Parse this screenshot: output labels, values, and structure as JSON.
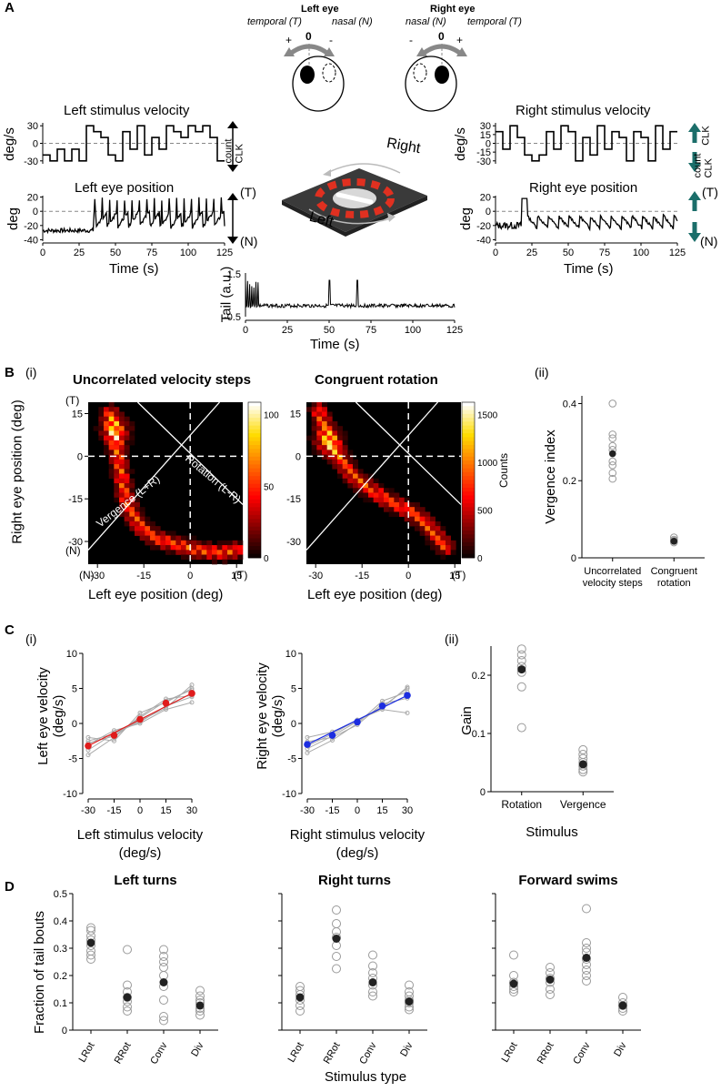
{
  "panels": {
    "A": "A",
    "B": "B",
    "C": "C",
    "D": "D",
    "i": "(i)",
    "ii": "(ii)"
  },
  "panelA": {
    "left_eye_title": "Left eye",
    "right_eye_title": "Right eye",
    "left_eye_temporal": "temporal (T)",
    "left_eye_nasal": "nasal (N)",
    "right_eye_nasal": "nasal (N)",
    "right_eye_temporal": "temporal (T)",
    "plus": "+",
    "minus": "-",
    "zero": "0",
    "left_stim_title": "Left stimulus velocity",
    "left_eye_title_trace": "Left eye position",
    "right_stim_title": "Right stimulus velocity",
    "right_eye_title_trace": "Right eye position",
    "ylabel_vel": "deg/s",
    "ylabel_pos": "deg",
    "xlabel_time": "Time (s)",
    "count_clk": [
      "count",
      "CLK"
    ],
    "clk_label": "CLK",
    "T": "(T)",
    "N": "(N)",
    "arena_right": "Right",
    "arena_left": "Left",
    "tail_ylabel": "Tail (a.u.)",
    "tail_yticks": [
      "1.5",
      "-0.5"
    ],
    "vel_yticks": [
      "30",
      "0",
      "-30"
    ],
    "pos_yticks": [
      "20",
      "0",
      "-20",
      "-40"
    ],
    "right_vel_yticks": [
      "30",
      "15",
      "0",
      "-15",
      "-30"
    ],
    "time_ticks": [
      "0",
      "25",
      "50",
      "75",
      "100",
      "125"
    ],
    "left_stim_steps": [
      -20,
      -30,
      -10,
      -30,
      -10,
      -30,
      30,
      20,
      10,
      -20,
      -30,
      20,
      -10,
      30,
      -20,
      10,
      -10,
      30,
      20,
      10,
      30,
      20,
      30,
      10,
      -30
    ],
    "right_stim_steps": [
      20,
      -10,
      30,
      10,
      -20,
      -30,
      -20,
      20,
      -10,
      30,
      20,
      -30,
      10,
      -20,
      30,
      -10,
      20,
      10,
      -30,
      20,
      10,
      -30,
      30,
      -10,
      20
    ],
    "colors": {
      "clk_arrow_left": "#000000",
      "clk_arrow_right": "#1b6e6a",
      "arena_stripe": "#e03020"
    }
  },
  "panelB": {
    "hist1_title": "Uncorrelated velocity steps",
    "hist2_title": "Congruent rotation",
    "ylabel": "Right eye position (deg)",
    "xlabel": "Left eye position (deg)",
    "yticks": [
      "15",
      "0",
      "-15",
      "-30"
    ],
    "xticks": [
      "-30",
      "-15",
      "0",
      "15"
    ],
    "T": "(T)",
    "N": "(N)",
    "vergence_label": "Vergence (L+R)",
    "rotation_label": "Rotation (L-R)",
    "cbar1_ticks": [
      "100",
      "50",
      "0"
    ],
    "cbar2_ticks": [
      "1500",
      "1000",
      "500",
      "0"
    ],
    "cbar2_label": "Counts",
    "ii_ylabel": "Vergence index",
    "ii_yticks": [
      "0.4",
      "0.2",
      "0"
    ],
    "ii_xcats": [
      [
        "Uncorrelated",
        "velocity steps"
      ],
      [
        "Congruent",
        "rotation"
      ]
    ]
  },
  "chart_data": [
    {
      "type": "heatmap",
      "title": "Uncorrelated velocity steps",
      "xlabel": "Left eye position (deg)",
      "ylabel": "Right eye position (deg)",
      "xlim": [
        -33,
        17
      ],
      "ylim": [
        -38,
        19
      ],
      "colorbar_max": 120,
      "ridge": [
        [
          -26,
          15
        ],
        [
          -25,
          10
        ],
        [
          -24,
          4
        ],
        [
          -23,
          -2
        ],
        [
          -22,
          -8
        ],
        [
          -21,
          -14
        ],
        [
          -19,
          -20
        ],
        [
          -16,
          -25
        ],
        [
          -11,
          -29
        ],
        [
          -5,
          -31
        ],
        [
          2,
          -33
        ],
        [
          10,
          -34
        ],
        [
          15,
          -33
        ]
      ],
      "peak": [
        -24,
        9
      ]
    },
    {
      "type": "heatmap",
      "title": "Congruent rotation",
      "xlabel": "Left eye position (deg)",
      "colorbar_label": "Counts",
      "colorbar_max": 1700,
      "ridge": [
        [
          -29,
          16
        ],
        [
          -27,
          10
        ],
        [
          -25,
          4
        ],
        [
          -22,
          -1
        ],
        [
          -18,
          -7
        ],
        [
          -12,
          -12
        ],
        [
          -6,
          -16
        ],
        [
          0,
          -19
        ],
        [
          5,
          -23
        ],
        [
          9,
          -28
        ],
        [
          12,
          -32
        ]
      ],
      "peak": [
        -26,
        5
      ]
    },
    {
      "type": "scatter",
      "ylabel": "Vergence index",
      "categories": [
        "Uncorrelated velocity steps",
        "Congruent rotation"
      ],
      "ylim": [
        0,
        0.42
      ],
      "points": [
        [
          0.4,
          0.32,
          0.31,
          0.29,
          0.28,
          0.25,
          0.24,
          0.22,
          0.205
        ],
        [
          0.053,
          0.047,
          0.044,
          0.04
        ]
      ],
      "means": [
        0.27,
        0.043
      ]
    },
    {
      "type": "line",
      "xlabel": "Left stimulus velocity (deg/s)",
      "ylabel": "Left eye velocity (deg/s)",
      "x": [
        -30,
        -15,
        0,
        15,
        30
      ],
      "xlim": [
        -30,
        30
      ],
      "ylim": [
        -10,
        10
      ],
      "mean": [
        -3.2,
        -1.7,
        0.6,
        2.9,
        4.3
      ],
      "individuals": [
        [
          -2.5,
          -1.5,
          0.4,
          2.2,
          5.5
        ],
        [
          -4.5,
          -2.0,
          1.0,
          3.5,
          4.0
        ],
        [
          -3.0,
          -1.0,
          0.0,
          2.0,
          3.0
        ],
        [
          -2.0,
          -2.5,
          1.5,
          3.0,
          5.0
        ],
        [
          -3.8,
          -1.4,
          0.2,
          2.5,
          3.8
        ],
        [
          -2.8,
          -1.8,
          0.8,
          3.2,
          4.8
        ]
      ],
      "color": "#e01c1c"
    },
    {
      "type": "line",
      "xlabel": "Right stimulus velocity (deg/s)",
      "ylabel": "Right eye velocity (deg/s)",
      "x": [
        -30,
        -15,
        0,
        15,
        30
      ],
      "xlim": [
        -30,
        30
      ],
      "ylim": [
        -10,
        10
      ],
      "mean": [
        -3.0,
        -1.7,
        0.2,
        2.5,
        4.0
      ],
      "individuals": [
        [
          -2.0,
          -1.2,
          0.4,
          2.2,
          5.2
        ],
        [
          -4.2,
          -2.4,
          0.0,
          3.2,
          4.5
        ],
        [
          -3.2,
          -1.5,
          0.5,
          2.0,
          1.5
        ],
        [
          -2.6,
          -2.0,
          -0.2,
          2.8,
          3.6
        ],
        [
          -3.6,
          -1.8,
          0.3,
          2.4,
          5.0
        ]
      ],
      "color": "#1c2de0"
    },
    {
      "type": "scatter",
      "ylabel": "Gain",
      "xlabel": "Stimulus",
      "categories": [
        "Rotation",
        "Vergence"
      ],
      "ylim": [
        0,
        0.25
      ],
      "points": [
        [
          0.245,
          0.235,
          0.225,
          0.215,
          0.205,
          0.18,
          0.11
        ],
        [
          0.072,
          0.064,
          0.057,
          0.05,
          0.044,
          0.038,
          0.034
        ]
      ],
      "means": [
        0.21,
        0.047
      ]
    },
    {
      "type": "scatter",
      "title": "Left turns",
      "ylabel": "Fraction of tail bouts",
      "categories": [
        "LRot",
        "RRot",
        "Conv",
        "Div"
      ],
      "ylim": [
        0,
        0.5
      ],
      "points": [
        [
          0.375,
          0.365,
          0.345,
          0.33,
          0.31,
          0.29,
          0.275,
          0.26
        ],
        [
          0.295,
          0.165,
          0.14,
          0.12,
          0.105,
          0.085,
          0.07
        ],
        [
          0.295,
          0.27,
          0.25,
          0.23,
          0.2,
          0.16,
          0.11,
          0.05,
          0.035
        ],
        [
          0.145,
          0.125,
          0.11,
          0.1,
          0.08,
          0.07,
          0.055
        ]
      ],
      "means": [
        0.32,
        0.12,
        0.175,
        0.09
      ]
    },
    {
      "type": "scatter",
      "title": "Right turns",
      "categories": [
        "LRot",
        "RRot",
        "Conv",
        "Div"
      ],
      "ylim": [
        0,
        0.5
      ],
      "points": [
        [
          0.16,
          0.145,
          0.13,
          0.11,
          0.09,
          0.07
        ],
        [
          0.44,
          0.39,
          0.36,
          0.34,
          0.31,
          0.27,
          0.225
        ],
        [
          0.275,
          0.235,
          0.21,
          0.19,
          0.165,
          0.14,
          0.125
        ],
        [
          0.165,
          0.14,
          0.125,
          0.11,
          0.1,
          0.085,
          0.075
        ]
      ],
      "means": [
        0.12,
        0.335,
        0.175,
        0.105
      ]
    },
    {
      "type": "scatter",
      "title": "Forward swims",
      "categories": [
        "LRot",
        "RRot",
        "Conv",
        "Div"
      ],
      "ylim": [
        0,
        0.5
      ],
      "points": [
        [
          0.275,
          0.2,
          0.175,
          0.16,
          0.15,
          0.14
        ],
        [
          0.23,
          0.21,
          0.19,
          0.175,
          0.15,
          0.13
        ],
        [
          0.445,
          0.32,
          0.3,
          0.285,
          0.26,
          0.24,
          0.22,
          0.2,
          0.18
        ],
        [
          0.12,
          0.1,
          0.09,
          0.08,
          0.07
        ]
      ],
      "means": [
        0.17,
        0.185,
        0.265,
        0.09
      ]
    }
  ],
  "panelC": {
    "left_ylabel": [
      "Left eye velocity",
      "(deg/s)"
    ],
    "left_xlabel": [
      "Left stimulus velocity",
      "(deg/s)"
    ],
    "right_ylabel": [
      "Right eye velocity",
      "(deg/s)"
    ],
    "right_xlabel": [
      "Right stimulus velocity",
      "(deg/s)"
    ],
    "yticks": [
      "10",
      "5",
      "0",
      "-5",
      "-10"
    ],
    "xticks": [
      "-30",
      "-15",
      "0",
      "15",
      "30"
    ],
    "ii_ylabel": "Gain",
    "ii_xlabel": "Stimulus",
    "ii_yticks": [
      "0.2",
      "0.1",
      "0"
    ],
    "ii_xcats": [
      "Rotation",
      "Vergence"
    ]
  },
  "panelD": {
    "titles": [
      "Left turns",
      "Right turns",
      "Forward swims"
    ],
    "ylabel": "Fraction of tail bouts",
    "xlabel": "Stimulus type",
    "yticks": [
      "0.5",
      "0.4",
      "0.3",
      "0.2",
      "0.1",
      "0"
    ],
    "xcats": [
      "LRot",
      "RRot",
      "Conv",
      "Div"
    ]
  }
}
